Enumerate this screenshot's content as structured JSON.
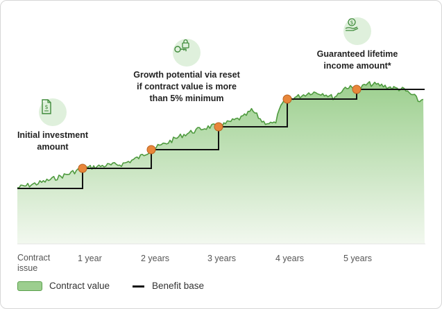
{
  "annotations": [
    {
      "key": "investment",
      "icon": "document-dollar-icon",
      "lines": [
        "Initial investment",
        "amount"
      ]
    },
    {
      "key": "reset",
      "icon": "lock-key-icon",
      "lines": [
        "Growth potential via reset",
        "if contract value is more",
        "than 5% minimum"
      ]
    },
    {
      "key": "income",
      "icon": "hand-dollar-icon",
      "lines": [
        "Guaranteed lifetime",
        "income amount*"
      ]
    }
  ],
  "x_labels": [
    {
      "line1": "Contract",
      "line2": "issue"
    },
    {
      "line1": "1 year",
      "line2": ""
    },
    {
      "line1": "2 years",
      "line2": ""
    },
    {
      "line1": "3 years",
      "line2": ""
    },
    {
      "line1": "4 years",
      "line2": ""
    },
    {
      "line1": "5 years",
      "line2": ""
    }
  ],
  "legend": {
    "contract_value": "Contract value",
    "benefit_base": "Benefit base"
  },
  "colors": {
    "area_fill_top": "#9ccf8e",
    "area_fill_bottom": "#f2f8ef",
    "area_stroke": "#4e9a3e",
    "benefit_base_line": "#111111",
    "reset_marker": "#e8863a",
    "icon_bg": "#dff0dc",
    "icon_stroke": "#3f8a3a"
  }
}
